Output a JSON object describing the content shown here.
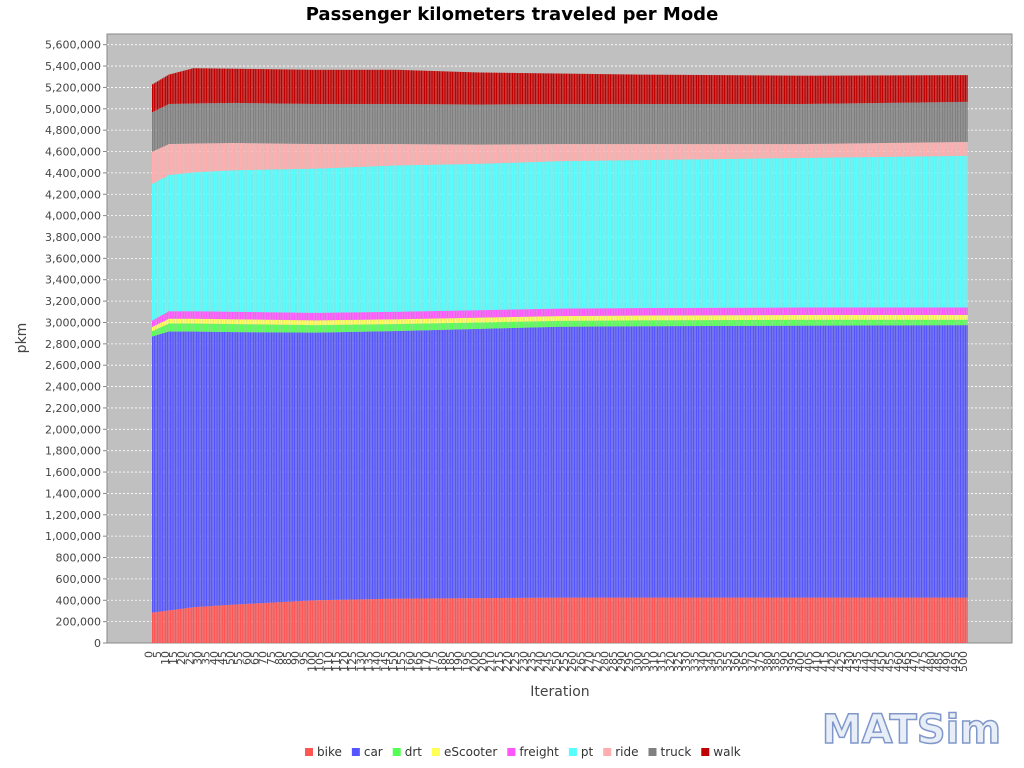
{
  "chart_data": {
    "type": "bar",
    "stacked": true,
    "title": "Passenger kilometers traveled per Mode",
    "xlabel": "Iteration",
    "ylabel": "pkm",
    "ylim": [
      0,
      5700000
    ],
    "y_tick_step": 200000,
    "grid": true,
    "legend_position": "bottom",
    "x_range": [
      0,
      500
    ],
    "series": [
      {
        "name": "bike",
        "color": "#ff5555",
        "x": [
          0,
          10,
          25,
          50,
          100,
          150,
          200,
          250,
          300,
          400,
          500
        ],
        "values": [
          285000,
          305000,
          335000,
          360000,
          400000,
          415000,
          420000,
          425000,
          425000,
          425000,
          425000
        ]
      },
      {
        "name": "car",
        "color": "#5555ff",
        "x": [
          0,
          10,
          25,
          50,
          100,
          150,
          200,
          250,
          300,
          400,
          500
        ],
        "values": [
          2585000,
          2610000,
          2580000,
          2550000,
          2505000,
          2505000,
          2520000,
          2535000,
          2540000,
          2545000,
          2550000
        ]
      },
      {
        "name": "drt",
        "color": "#55ff55",
        "x": [
          0,
          10,
          25,
          50,
          100,
          150,
          200,
          250,
          300,
          400,
          500
        ],
        "values": [
          50000,
          75000,
          75000,
          75000,
          70000,
          65000,
          60000,
          55000,
          55000,
          55000,
          50000
        ]
      },
      {
        "name": "eScooter",
        "color": "#ffff55",
        "x": [
          0,
          10,
          25,
          50,
          100,
          150,
          200,
          250,
          300,
          400,
          500
        ],
        "values": [
          40000,
          45000,
          45000,
          45000,
          45000,
          45000,
          45000,
          45000,
          45000,
          45000,
          45000
        ]
      },
      {
        "name": "freight",
        "color": "#ff55ff",
        "x": [
          0,
          10,
          25,
          50,
          100,
          150,
          200,
          250,
          300,
          400,
          500
        ],
        "values": [
          60000,
          70000,
          70000,
          70000,
          70000,
          70000,
          70000,
          70000,
          70000,
          70000,
          70000
        ]
      },
      {
        "name": "pt",
        "color": "#55ffff",
        "x": [
          0,
          10,
          25,
          50,
          100,
          150,
          200,
          250,
          300,
          400,
          500
        ],
        "values": [
          1280000,
          1275000,
          1300000,
          1325000,
          1350000,
          1370000,
          1370000,
          1380000,
          1385000,
          1400000,
          1420000
        ]
      },
      {
        "name": "ride",
        "color": "#ffafaf",
        "x": [
          0,
          10,
          25,
          50,
          100,
          150,
          200,
          250,
          300,
          400,
          500
        ],
        "values": [
          300000,
          290000,
          270000,
          255000,
          230000,
          200000,
          180000,
          160000,
          150000,
          130000,
          130000
        ]
      },
      {
        "name": "truck",
        "color": "#808080",
        "x": [
          0,
          10,
          25,
          50,
          100,
          150,
          200,
          250,
          300,
          400,
          500
        ],
        "values": [
          370000,
          375000,
          375000,
          375000,
          375000,
          375000,
          375000,
          375000,
          375000,
          375000,
          375000
        ]
      },
      {
        "name": "walk",
        "color": "#c00000",
        "x": [
          0,
          10,
          25,
          50,
          100,
          150,
          200,
          250,
          300,
          400,
          500
        ],
        "values": [
          260000,
          275000,
          330000,
          320000,
          320000,
          320000,
          300000,
          285000,
          275000,
          265000,
          250000
        ]
      }
    ]
  },
  "logo": {
    "text": "MATSim"
  }
}
